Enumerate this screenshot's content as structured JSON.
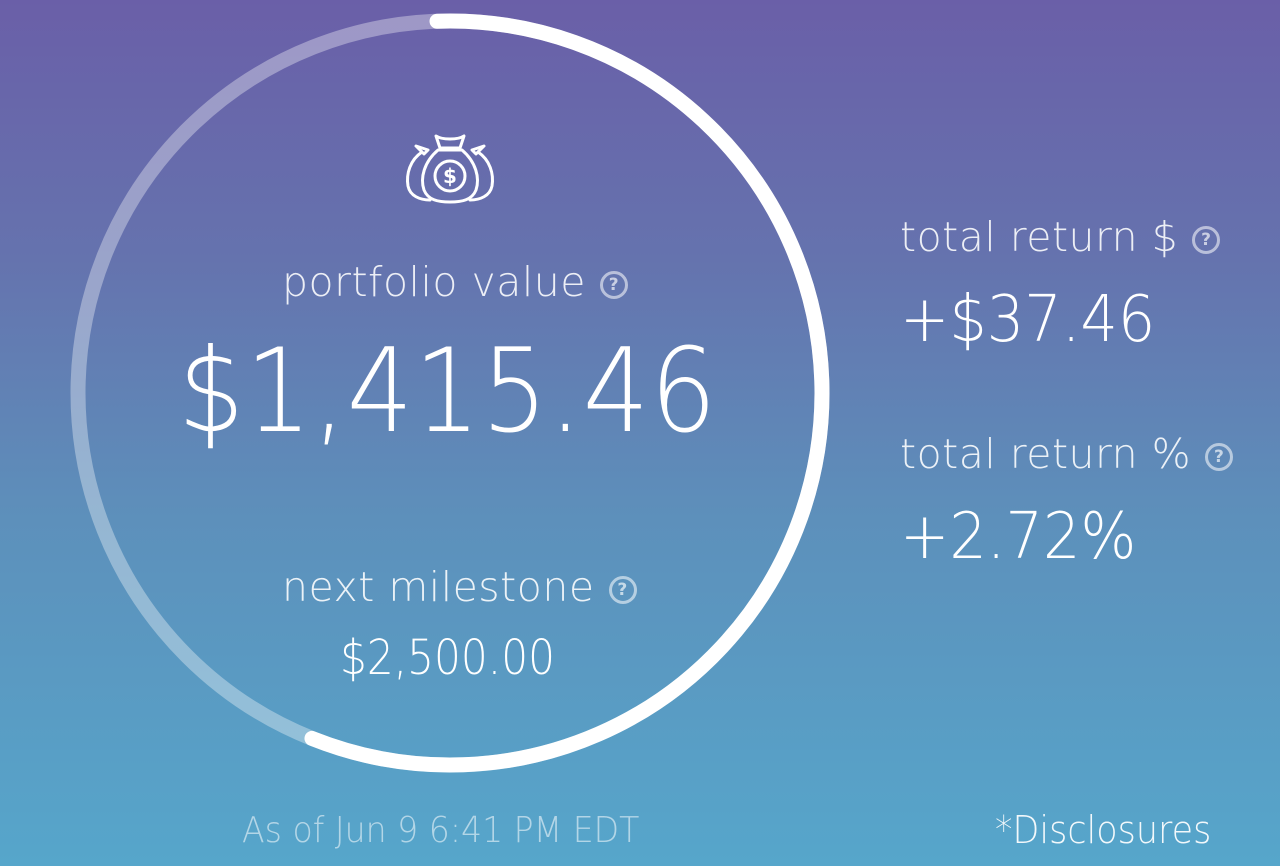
{
  "portfolio": {
    "label": "portfolio value",
    "value": "$1,415.46",
    "milestone_progress": 0.566
  },
  "milestone": {
    "label": "next milestone",
    "value": "$2,500.00"
  },
  "total_return_dollar": {
    "label": "total return $",
    "value": "+$37.46"
  },
  "total_return_percent": {
    "label": "total return %",
    "value": "+2.72%"
  },
  "help_icon_glyph": "?",
  "footer": {
    "as_of": "As of Jun 9  6:41 PM EDT",
    "disclosures": "*Disclosures"
  },
  "icons": {
    "top": "money-bags-icon",
    "help": "question-circle-icon"
  },
  "colors": {
    "gradient_top": "#6a5fa8",
    "gradient_bottom": "#56a6cb",
    "ring_progress": "#ffffff",
    "ring_track": "rgba(255,255,255,0.35)"
  }
}
